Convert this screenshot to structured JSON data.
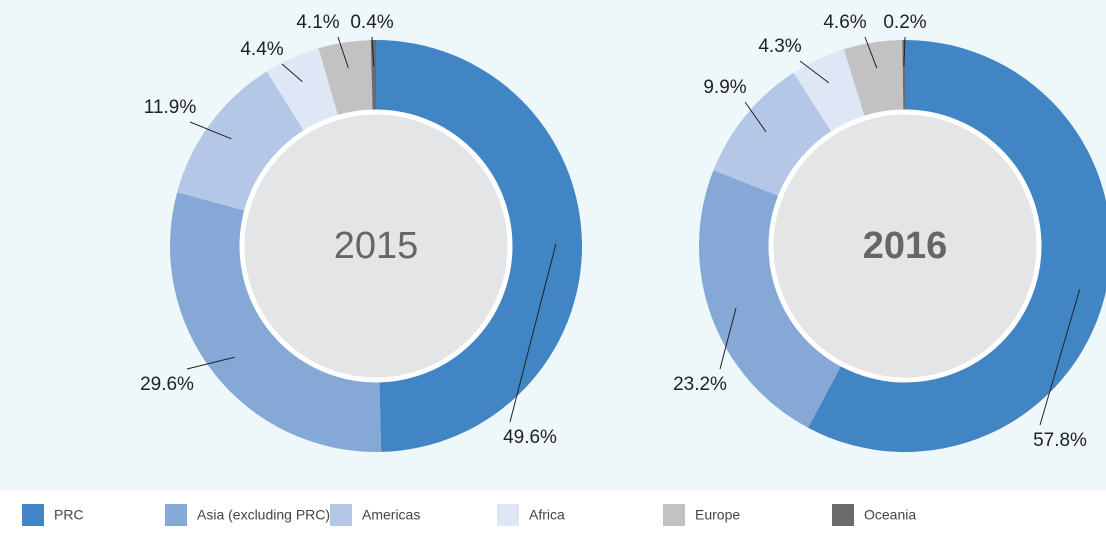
{
  "chart_data": [
    {
      "type": "donut",
      "center_label": "2015",
      "center_bold": false,
      "values": [
        49.6,
        29.6,
        11.9,
        4.4,
        4.1,
        0.4
      ],
      "value_labels": [
        "49.6%",
        "29.6%",
        "11.9%",
        "4.4%",
        "4.1%",
        "0.4%"
      ]
    },
    {
      "type": "donut",
      "center_label": "2016",
      "center_bold": true,
      "values": [
        57.8,
        23.2,
        9.9,
        4.3,
        4.6,
        0.2
      ],
      "value_labels": [
        "57.8%",
        "23.2%",
        "9.9%",
        "4.3%",
        "4.6%",
        "0.2%"
      ]
    }
  ],
  "legend": {
    "categories": [
      "PRC",
      "Asia (excluding PRC)",
      "Americas",
      "Africa",
      "Europe",
      "Oceania"
    ],
    "colors": [
      "#4285c4",
      "#86a8d6",
      "#b4c7e6",
      "#dfe7f6",
      "#c2c2c2",
      "#6b6b6b"
    ]
  }
}
